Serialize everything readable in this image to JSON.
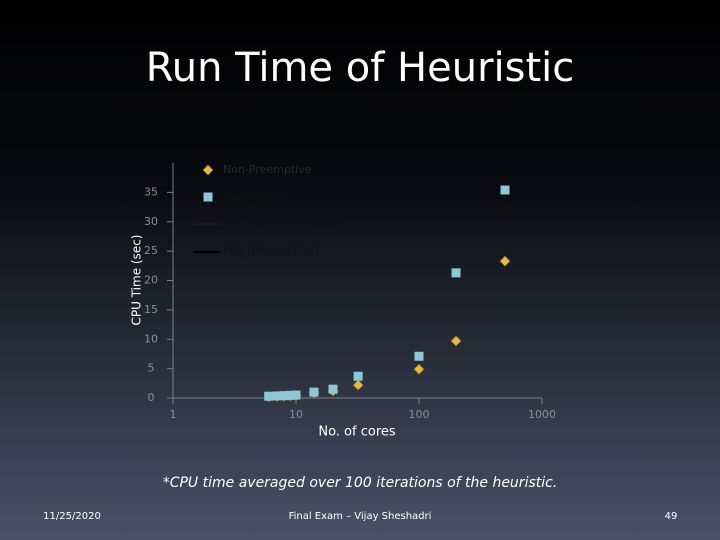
{
  "chart_data": {
    "type": "scatter",
    "title": "Run Time of Heuristic",
    "x_label": "No. of cores",
    "y_label": "CPU Time (sec)",
    "xscale": "log",
    "xlim": [
      1,
      1000
    ],
    "xticks": [
      1,
      10,
      100,
      1000
    ],
    "ylim": [
      0,
      40
    ],
    "yticks": [
      0,
      5,
      10,
      15,
      20,
      25,
      30,
      35
    ],
    "legend": "top-left",
    "series": [
      {
        "name": "Non-Preemptive",
        "color": "#e8b84a",
        "marker": "diamond",
        "x": [
          6,
          7,
          8,
          9,
          10,
          14,
          20,
          32,
          100,
          200,
          500
        ],
        "values": [
          0.2,
          0.25,
          0.3,
          0.35,
          0.4,
          0.8,
          1.2,
          2.2,
          4.9,
          9.7,
          23.3
        ]
      },
      {
        "name": "Preemptive",
        "color": "#8cc8d8",
        "marker": "square",
        "x": [
          6,
          7,
          8,
          9,
          10,
          14,
          20,
          32,
          100,
          200,
          500
        ],
        "values": [
          0.3,
          0.35,
          0.4,
          0.45,
          0.5,
          1.0,
          1.5,
          3.7,
          7.1,
          21.3,
          35.4
        ]
      }
    ],
    "trendlines": [
      {
        "name": "Poly.(Non-Preemptive)",
        "color": "#1a1a1a"
      },
      {
        "name": "Poly.(Preemptive)",
        "color": "#000000"
      }
    ]
  },
  "slide": {
    "footnote": "*CPU time averaged over 100 iterations of the heuristic.",
    "date": "11/25/2020",
    "footer": "Final Exam – Vijay Sheshadri",
    "page": "49"
  }
}
